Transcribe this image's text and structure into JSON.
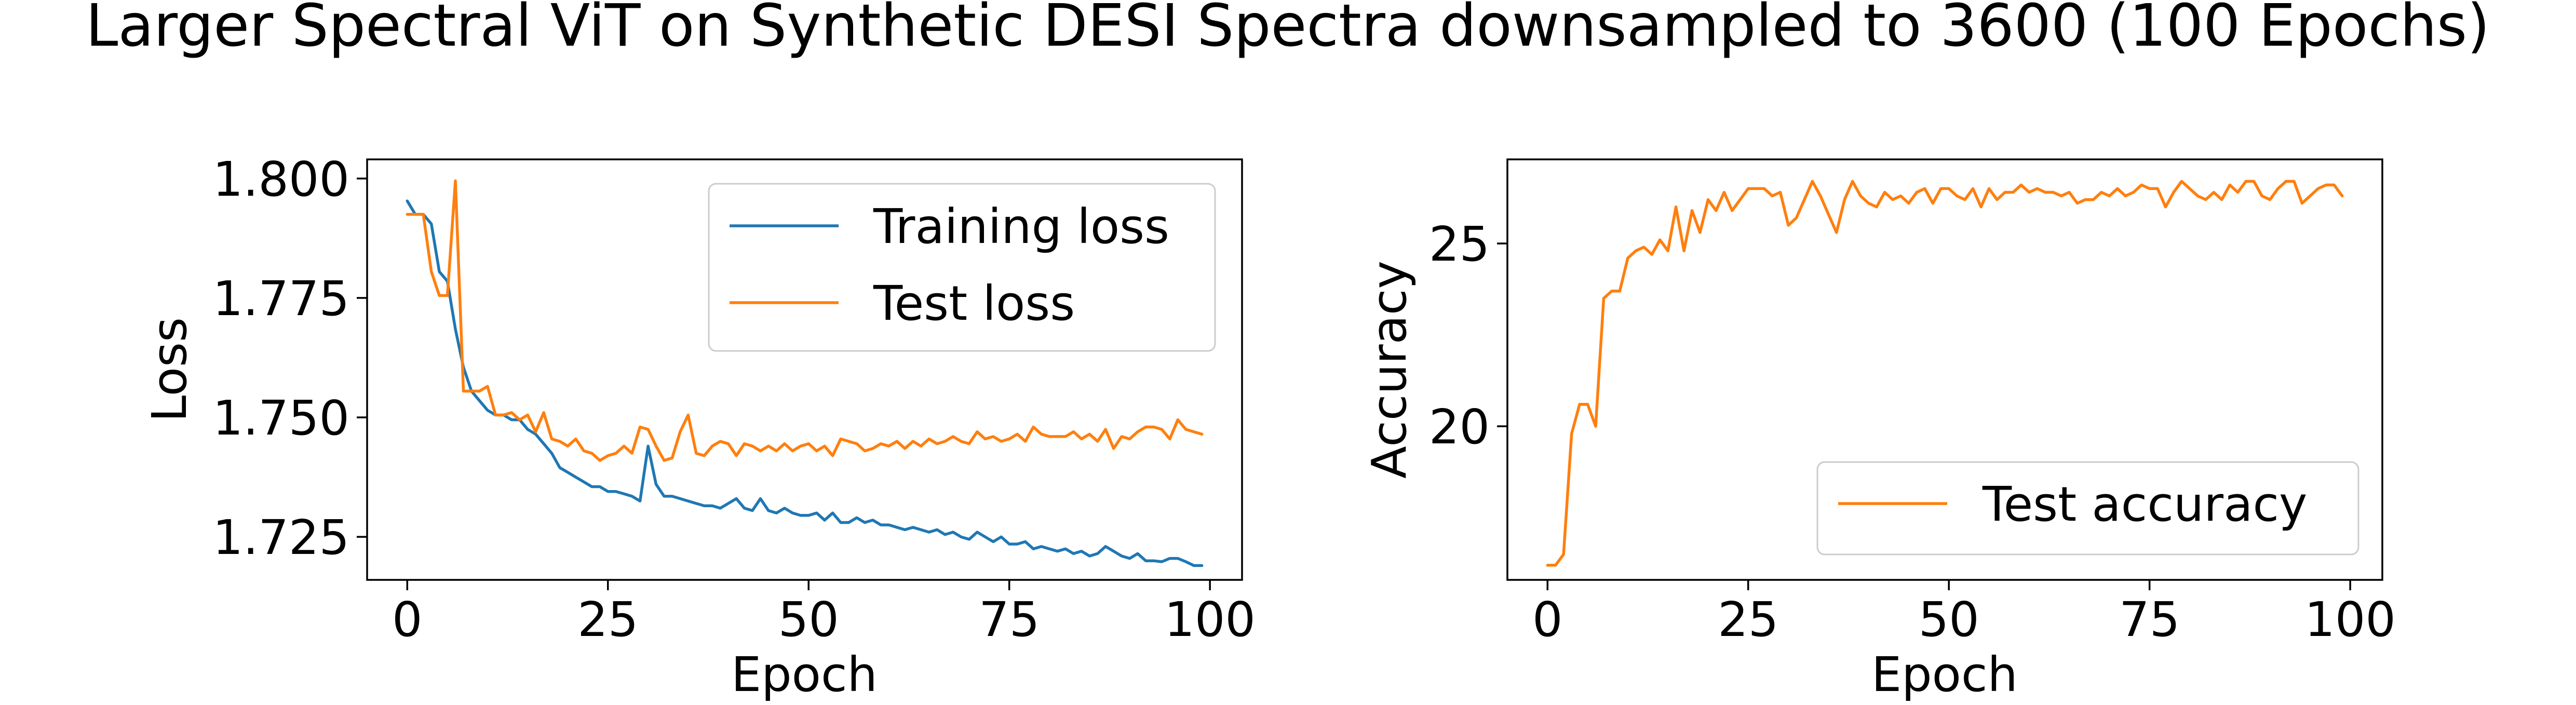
{
  "suptitle": "Larger Spectral ViT on Synthetic DESI Spectra downsampled to 3600 (100 Epochs)",
  "colors": {
    "training_loss": "#1f77b4",
    "test_loss": "#ff7f0e",
    "test_accuracy": "#ff7f0e"
  },
  "chart_data": [
    {
      "type": "line",
      "xlabel": "Epoch",
      "ylabel": "Loss",
      "xlim": [
        -5,
        104
      ],
      "ylim": [
        1.716,
        1.804
      ],
      "xticks": [
        0,
        25,
        50,
        75,
        100
      ],
      "xtick_labels": [
        "0",
        "25",
        "50",
        "75",
        "100"
      ],
      "yticks": [
        1.725,
        1.75,
        1.775,
        1.8
      ],
      "ytick_labels": [
        "1.725",
        "1.750",
        "1.775",
        "1.800"
      ],
      "grid": false,
      "legend": "upper right",
      "x": [
        0,
        1,
        2,
        3,
        4,
        5,
        6,
        7,
        8,
        9,
        10,
        11,
        12,
        13,
        14,
        15,
        16,
        17,
        18,
        19,
        20,
        21,
        22,
        23,
        24,
        25,
        26,
        27,
        28,
        29,
        30,
        31,
        32,
        33,
        34,
        35,
        36,
        37,
        38,
        39,
        40,
        41,
        42,
        43,
        44,
        45,
        46,
        47,
        48,
        49,
        50,
        51,
        52,
        53,
        54,
        55,
        56,
        57,
        58,
        59,
        60,
        61,
        62,
        63,
        64,
        65,
        66,
        67,
        68,
        69,
        70,
        71,
        72,
        73,
        74,
        75,
        76,
        77,
        78,
        79,
        80,
        81,
        82,
        83,
        84,
        85,
        86,
        87,
        88,
        89,
        90,
        91,
        92,
        93,
        94,
        95,
        96,
        97,
        98,
        99
      ],
      "series": [
        {
          "name": "Training loss",
          "color": "#1f77b4",
          "values": [
            1.7953,
            1.7925,
            1.7925,
            1.7905,
            1.7805,
            1.7785,
            1.7685,
            1.7605,
            1.7555,
            1.7535,
            1.7515,
            1.7505,
            1.7505,
            1.7495,
            1.7495,
            1.7475,
            1.7465,
            1.7445,
            1.7425,
            1.7395,
            1.7385,
            1.7375,
            1.7365,
            1.7355,
            1.7355,
            1.7345,
            1.7345,
            1.734,
            1.7335,
            1.7325,
            1.744,
            1.736,
            1.7335,
            1.7335,
            1.733,
            1.7325,
            1.732,
            1.7315,
            1.7315,
            1.731,
            1.732,
            1.733,
            1.731,
            1.7305,
            1.733,
            1.7305,
            1.73,
            1.731,
            1.73,
            1.7295,
            1.7295,
            1.73,
            1.7285,
            1.73,
            1.728,
            1.728,
            1.729,
            1.728,
            1.7285,
            1.7275,
            1.7275,
            1.727,
            1.7265,
            1.727,
            1.7265,
            1.726,
            1.7265,
            1.7255,
            1.726,
            1.725,
            1.7245,
            1.726,
            1.725,
            1.724,
            1.725,
            1.7235,
            1.7235,
            1.724,
            1.7225,
            1.723,
            1.7225,
            1.722,
            1.7225,
            1.7215,
            1.722,
            1.721,
            1.7215,
            1.723,
            1.722,
            1.721,
            1.7205,
            1.7215,
            1.72,
            1.72,
            1.7198,
            1.7205,
            1.7205,
            1.7198,
            1.719,
            1.719
          ]
        },
        {
          "name": "Test loss",
          "color": "#ff7f0e",
          "values": [
            1.7925,
            1.7925,
            1.7925,
            1.7805,
            1.7755,
            1.7755,
            1.7995,
            1.7555,
            1.7555,
            1.7555,
            1.7565,
            1.7505,
            1.7505,
            1.751,
            1.7495,
            1.7505,
            1.747,
            1.751,
            1.7455,
            1.745,
            1.744,
            1.7455,
            1.743,
            1.7425,
            1.741,
            1.742,
            1.7425,
            1.744,
            1.7425,
            1.748,
            1.7475,
            1.744,
            1.741,
            1.7415,
            1.747,
            1.7505,
            1.7425,
            1.742,
            1.744,
            1.745,
            1.7445,
            1.742,
            1.7445,
            1.744,
            1.743,
            1.744,
            1.743,
            1.7445,
            1.743,
            1.744,
            1.7445,
            1.743,
            1.744,
            1.742,
            1.7455,
            1.745,
            1.7445,
            1.743,
            1.7435,
            1.7445,
            1.744,
            1.745,
            1.7435,
            1.745,
            1.744,
            1.7455,
            1.7445,
            1.745,
            1.746,
            1.745,
            1.7445,
            1.747,
            1.7455,
            1.746,
            1.745,
            1.7455,
            1.7465,
            1.745,
            1.748,
            1.7465,
            1.746,
            1.746,
            1.746,
            1.747,
            1.7455,
            1.7465,
            1.745,
            1.7475,
            1.7435,
            1.746,
            1.7455,
            1.747,
            1.748,
            1.748,
            1.7475,
            1.7455,
            1.7495,
            1.7475,
            1.747,
            1.7465
          ]
        }
      ]
    },
    {
      "type": "line",
      "xlabel": "Epoch",
      "ylabel": "Accuracy",
      "xlim": [
        -5,
        104
      ],
      "ylim": [
        15.8,
        27.3
      ],
      "xticks": [
        0,
        25,
        50,
        75,
        100
      ],
      "xtick_labels": [
        "0",
        "25",
        "50",
        "75",
        "100"
      ],
      "yticks": [
        20,
        25
      ],
      "ytick_labels": [
        "20",
        "25"
      ],
      "grid": false,
      "legend": "lower right",
      "x": [
        0,
        1,
        2,
        3,
        4,
        5,
        6,
        7,
        8,
        9,
        10,
        11,
        12,
        13,
        14,
        15,
        16,
        17,
        18,
        19,
        20,
        21,
        22,
        23,
        24,
        25,
        26,
        27,
        28,
        29,
        30,
        31,
        32,
        33,
        34,
        35,
        36,
        37,
        38,
        39,
        40,
        41,
        42,
        43,
        44,
        45,
        46,
        47,
        48,
        49,
        50,
        51,
        52,
        53,
        54,
        55,
        56,
        57,
        58,
        59,
        60,
        61,
        62,
        63,
        64,
        65,
        66,
        67,
        68,
        69,
        70,
        71,
        72,
        73,
        74,
        75,
        76,
        77,
        78,
        79,
        80,
        81,
        82,
        83,
        84,
        85,
        86,
        87,
        88,
        89,
        90,
        91,
        92,
        93,
        94,
        95,
        96,
        97,
        98,
        99
      ],
      "series": [
        {
          "name": "Test accuracy",
          "color": "#ff7f0e",
          "values": [
            16.2,
            16.2,
            16.5,
            19.8,
            20.6,
            20.6,
            20.0,
            23.5,
            23.7,
            23.7,
            24.6,
            24.8,
            24.9,
            24.7,
            25.1,
            24.8,
            26.0,
            24.8,
            25.9,
            25.3,
            26.2,
            25.9,
            26.4,
            25.9,
            26.2,
            26.5,
            26.5,
            26.5,
            26.3,
            26.4,
            25.5,
            25.7,
            26.2,
            26.7,
            26.3,
            25.8,
            25.3,
            26.2,
            26.7,
            26.3,
            26.1,
            26.0,
            26.4,
            26.2,
            26.3,
            26.1,
            26.4,
            26.5,
            26.1,
            26.5,
            26.5,
            26.3,
            26.2,
            26.5,
            26.0,
            26.5,
            26.2,
            26.4,
            26.4,
            26.6,
            26.4,
            26.5,
            26.4,
            26.4,
            26.3,
            26.4,
            26.1,
            26.2,
            26.2,
            26.4,
            26.3,
            26.5,
            26.3,
            26.4,
            26.6,
            26.5,
            26.5,
            26.0,
            26.4,
            26.7,
            26.5,
            26.3,
            26.2,
            26.4,
            26.2,
            26.6,
            26.4,
            26.7,
            26.7,
            26.3,
            26.2,
            26.5,
            26.7,
            26.7,
            26.1,
            26.3,
            26.5,
            26.6,
            26.6,
            26.3
          ]
        }
      ]
    }
  ]
}
